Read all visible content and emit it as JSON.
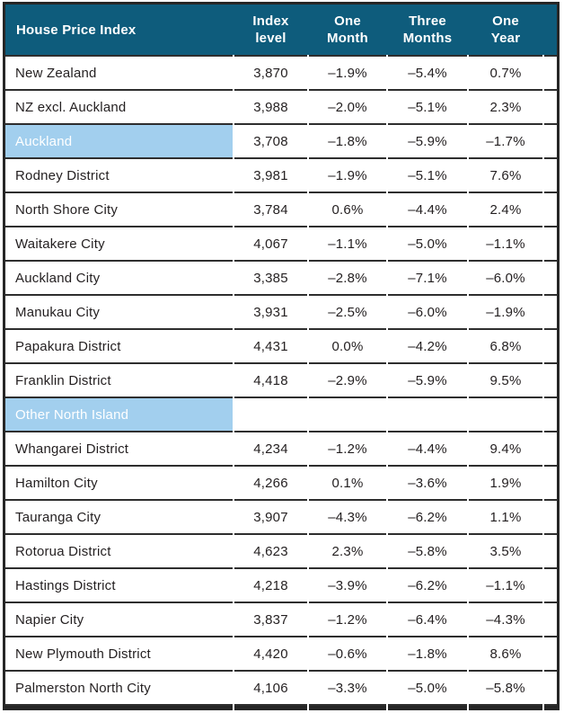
{
  "table": {
    "title": "House Price Index",
    "columns": [
      "Index\nlevel",
      "One\nMonth",
      "Three\nMonths",
      "One\nYear"
    ],
    "rows": [
      {
        "label": "New Zealand",
        "section": false,
        "values": [
          "3,870",
          "–1.9%",
          "–5.4%",
          "0.7%"
        ]
      },
      {
        "label": "NZ excl. Auckland",
        "section": false,
        "values": [
          "3,988",
          "–2.0%",
          "–5.1%",
          "2.3%"
        ]
      },
      {
        "label": "Auckland",
        "section": true,
        "values": [
          "3,708",
          "–1.8%",
          "–5.9%",
          "–1.7%"
        ]
      },
      {
        "label": "Rodney District",
        "section": false,
        "values": [
          "3,981",
          "–1.9%",
          "–5.1%",
          "7.6%"
        ]
      },
      {
        "label": "North Shore City",
        "section": false,
        "values": [
          "3,784",
          "0.6%",
          "–4.4%",
          "2.4%"
        ]
      },
      {
        "label": "Waitakere City",
        "section": false,
        "values": [
          "4,067",
          "–1.1%",
          "–5.0%",
          "–1.1%"
        ]
      },
      {
        "label": "Auckland City",
        "section": false,
        "values": [
          "3,385",
          "–2.8%",
          "–7.1%",
          "–6.0%"
        ]
      },
      {
        "label": "Manukau City",
        "section": false,
        "values": [
          "3,931",
          "–2.5%",
          "–6.0%",
          "–1.9%"
        ]
      },
      {
        "label": "Papakura District",
        "section": false,
        "values": [
          "4,431",
          "0.0%",
          "–4.2%",
          "6.8%"
        ]
      },
      {
        "label": "Franklin District",
        "section": false,
        "values": [
          "4,418",
          "–2.9%",
          "–5.9%",
          "9.5%"
        ]
      },
      {
        "label": "Other North Island",
        "section": true,
        "values": [
          "",
          "",
          "",
          ""
        ]
      },
      {
        "label": "Whangarei District",
        "section": false,
        "values": [
          "4,234",
          "–1.2%",
          "–4.4%",
          "9.4%"
        ]
      },
      {
        "label": "Hamilton City",
        "section": false,
        "values": [
          "4,266",
          "0.1%",
          "–3.6%",
          "1.9%"
        ]
      },
      {
        "label": "Tauranga City",
        "section": false,
        "values": [
          "3,907",
          "–4.3%",
          "–6.2%",
          "1.1%"
        ]
      },
      {
        "label": "Rotorua District",
        "section": false,
        "values": [
          "4,623",
          "2.3%",
          "–5.8%",
          "3.5%"
        ]
      },
      {
        "label": "Hastings District",
        "section": false,
        "values": [
          "4,218",
          "–3.9%",
          "–6.2%",
          "–1.1%"
        ]
      },
      {
        "label": "Napier City",
        "section": false,
        "values": [
          "3,837",
          "–1.2%",
          "–6.4%",
          "–4.3%"
        ]
      },
      {
        "label": "New Plymouth District",
        "section": false,
        "values": [
          "4,420",
          "–0.6%",
          "–1.8%",
          "8.6%"
        ]
      },
      {
        "label": "Palmerston North City",
        "section": false,
        "values": [
          "4,106",
          "–3.3%",
          "–5.0%",
          "–5.8%"
        ]
      }
    ]
  },
  "colors": {
    "header_bg": "#0e5c7c",
    "header_text": "#ffffff",
    "section_bg": "#a2cfee",
    "section_text": "#ffffff",
    "rule_line": "#2e2e2e",
    "body_text": "#231f20"
  }
}
